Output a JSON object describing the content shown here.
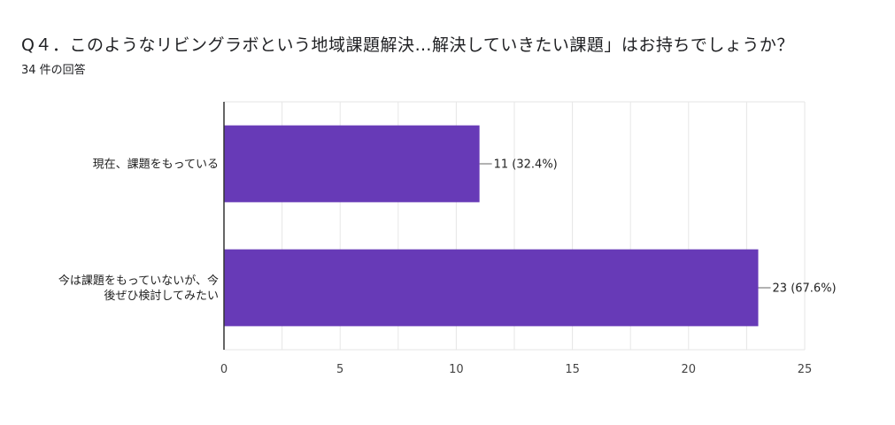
{
  "header": {
    "title": "Q４．このようなリビングラボという地域課題解決…解決していきたい課題」はお持ちでしょうか？",
    "response_count": "34 件の回答"
  },
  "colors": {
    "bar": "#673ab7",
    "grid": "#e6e6e6",
    "axis": "#333333"
  },
  "chart_data": {
    "type": "bar",
    "orientation": "horizontal",
    "categories": [
      [
        "現在、課題をもっている"
      ],
      [
        "今は課題をもっていないが、今",
        "後ぜひ検討してみたい"
      ]
    ],
    "values": [
      11,
      23
    ],
    "data_labels": [
      "11 (32.4%)",
      "23 (67.6%)"
    ],
    "xlim": [
      0,
      25
    ],
    "xticks": [
      0,
      5,
      10,
      15,
      20,
      25
    ],
    "grid": true,
    "legend": "none",
    "xlabel": "",
    "ylabel": ""
  }
}
